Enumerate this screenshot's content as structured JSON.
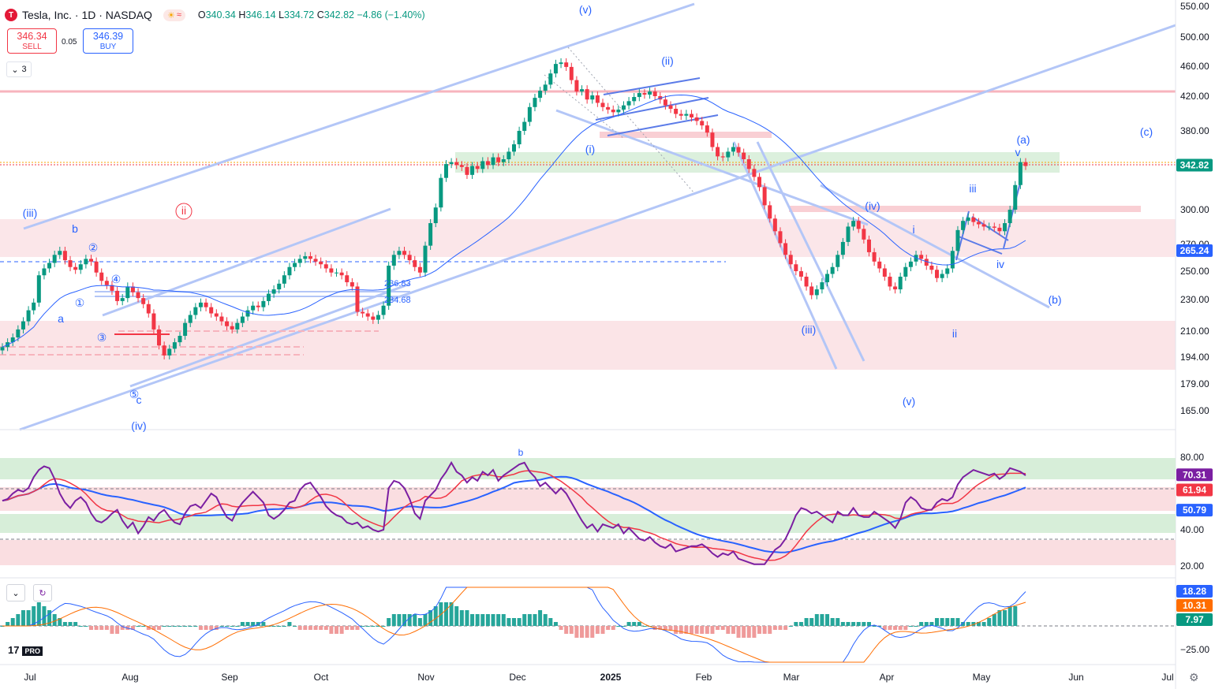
{
  "header": {
    "symbol": "Tesla, Inc. · 1D · NASDAQ",
    "logo_letter": "T",
    "o_label": "O",
    "o": "340.34",
    "h_label": "H",
    "h": "346.14",
    "l_label": "L",
    "l": "334.72",
    "c_label": "C",
    "c": "342.82",
    "change": "−4.86 (−1.40%)"
  },
  "trade": {
    "sell_price": "346.34",
    "sell_label": "SELL",
    "spread": "0.05",
    "buy_price": "346.39",
    "buy_label": "BUY"
  },
  "indicators_toggle": {
    "count": "3"
  },
  "branding": {
    "logo": "17",
    "plan": "PRO"
  },
  "colors": {
    "up": "#089981",
    "down": "#f23645",
    "wave": "#2962ff",
    "rsi": "#7b1fa2",
    "rsi_ma1": "#f23645",
    "rsi_ma2": "#2962ff",
    "macd_line": "#2962ff",
    "signal_line": "#ff6d00"
  },
  "chart_data": [
    {
      "type": "candlestick",
      "title": "Tesla, Inc. · 1D · NASDAQ",
      "yticks": [
        "550.00",
        "500.00",
        "460.00",
        "420.00",
        "380.00",
        "300.00",
        "270.00",
        "250.00",
        "230.00",
        "210.00",
        "194.00",
        "179.00",
        "165.00"
      ],
      "xticks": [
        "Jul",
        "Aug",
        "Sep",
        "Oct",
        "Nov",
        "Dec",
        "2025",
        "Feb",
        "Mar",
        "Apr",
        "May",
        "Jun",
        "Jul"
      ],
      "price_labels": [
        {
          "text": "342.82",
          "color": "#089981"
        },
        {
          "text": "265.24",
          "color": "#2962ff"
        }
      ],
      "level_labels": [
        "236.83",
        "234.68"
      ],
      "wave_labels": [
        "(v)",
        "(ii)",
        "(i)",
        "(iii)",
        "ii",
        "b",
        "②",
        "④",
        "①",
        "a",
        "③",
        "⑤",
        "c",
        "(iv)",
        "(iv)",
        "i",
        "(iii)",
        "ii",
        "(v)",
        "iii",
        "iv",
        "(a)",
        "v",
        "(b)",
        "(c)"
      ],
      "close": [
        200,
        203,
        206,
        211,
        216,
        223,
        228,
        247,
        252,
        256,
        262,
        265,
        258,
        253,
        251,
        255,
        259,
        257,
        249,
        243,
        240,
        236,
        229,
        231,
        239,
        235,
        231,
        227,
        221,
        211,
        201,
        195,
        199,
        203,
        207,
        215,
        220,
        225,
        228,
        225,
        221,
        219,
        216,
        213,
        211,
        215,
        219,
        223,
        226,
        225,
        229,
        234,
        237,
        241,
        247,
        253,
        256,
        259,
        261,
        259,
        257,
        255,
        252,
        249,
        249,
        247,
        242,
        239,
        222,
        221,
        219,
        217,
        220,
        226,
        254,
        262,
        265,
        262,
        258,
        253,
        249,
        269,
        288,
        302,
        330,
        344,
        346,
        343,
        341,
        333,
        342,
        339,
        347,
        343,
        351,
        346,
        349,
        357,
        365,
        380,
        390,
        407,
        418,
        427,
        435,
        450,
        463,
        465,
        459,
        441,
        426,
        429,
        416,
        421,
        412,
        407,
        404,
        401,
        404,
        409,
        414,
        419,
        424,
        422,
        426,
        420,
        416,
        409,
        405,
        399,
        397,
        399,
        395,
        391,
        386,
        378,
        362,
        352,
        351,
        357,
        362,
        356,
        349,
        339,
        331,
        321,
        304,
        292,
        281,
        271,
        262,
        255,
        250,
        246,
        239,
        233,
        237,
        242,
        248,
        253,
        262,
        272,
        285,
        290,
        283,
        274,
        264,
        257,
        252,
        246,
        239,
        237,
        246,
        253,
        257,
        262,
        259,
        254,
        251,
        245,
        248,
        252,
        265,
        282,
        290,
        293,
        289,
        287,
        285,
        285,
        284,
        281,
        288,
        300,
        323,
        346,
        342
      ],
      "rsi": [
        56,
        57,
        60,
        62,
        61,
        63,
        69,
        73,
        75,
        74,
        68,
        60,
        55,
        52,
        56,
        58,
        55,
        49,
        45,
        44,
        46,
        49,
        51,
        45,
        41,
        44,
        38,
        42,
        47,
        45,
        49,
        51,
        47,
        44,
        43,
        49,
        53,
        54,
        52,
        56,
        60,
        58,
        52,
        47,
        45,
        51,
        55,
        58,
        61,
        58,
        55,
        48,
        46,
        48,
        51,
        55,
        56,
        62,
        65,
        66,
        62,
        58,
        53,
        50,
        48,
        47,
        44,
        43,
        44,
        41,
        42,
        40,
        39,
        40,
        63,
        67,
        66,
        63,
        57,
        49,
        46,
        56,
        59,
        62,
        68,
        72,
        77,
        72,
        70,
        66,
        69,
        67,
        72,
        70,
        73,
        67,
        70,
        72,
        74,
        76,
        77,
        72,
        69,
        64,
        66,
        63,
        60,
        63,
        60,
        55,
        50,
        45,
        41,
        43,
        39,
        43,
        42,
        41,
        43,
        38,
        41,
        38,
        35,
        34,
        36,
        33,
        31,
        30,
        32,
        28,
        29,
        30,
        31,
        31,
        32,
        30,
        27,
        25,
        27,
        26,
        28,
        24,
        23,
        22,
        21,
        21,
        21,
        25,
        29,
        31,
        35,
        41,
        48,
        52,
        51,
        49,
        50,
        48,
        46,
        44,
        50,
        48,
        48,
        52,
        48,
        47,
        47,
        50,
        48,
        46,
        44,
        41,
        46,
        55,
        58,
        56,
        52,
        51,
        51,
        55,
        57,
        56,
        58,
        65,
        69,
        71,
        73,
        72,
        71,
        70,
        71,
        68,
        70,
        74,
        73,
        72,
        70
      ],
      "macd_hist": [
        0,
        1,
        2,
        3,
        4,
        4,
        5,
        6,
        5,
        4,
        3,
        2,
        1,
        1,
        1,
        0,
        0,
        -1,
        -1,
        -1,
        -1,
        -2,
        -2,
        -1,
        -1,
        -1,
        0,
        0,
        -1,
        -1,
        -1,
        0,
        0,
        0,
        0,
        0,
        0,
        0,
        -1,
        -1,
        -1,
        -1,
        0,
        0,
        0,
        0,
        1,
        1,
        1,
        1,
        1,
        0,
        0,
        0,
        0,
        1,
        0,
        -1,
        -1,
        -1,
        -1,
        -1,
        -1,
        -2,
        -2,
        -2,
        -1,
        -1,
        -1,
        0,
        0,
        0,
        0,
        0,
        2,
        3,
        3,
        3,
        3,
        3,
        2,
        3,
        4,
        5,
        6,
        6,
        6,
        5,
        4,
        4,
        3,
        3,
        3,
        3,
        3,
        3,
        3,
        2,
        2,
        2,
        3,
        3,
        3,
        4,
        3,
        2,
        1,
        -1,
        -2,
        -2,
        -3,
        -3,
        -3,
        -3,
        -2,
        -2,
        -1,
        -1,
        0,
        0,
        1,
        1,
        1,
        0,
        0,
        -1,
        -1,
        -1,
        -1,
        -2,
        -2,
        -2,
        -2,
        -2,
        -2,
        -2,
        -2,
        -1,
        -1,
        -2,
        -2,
        -3,
        -3,
        -3,
        -3,
        -2,
        -2,
        -2,
        -1,
        -1,
        -1,
        0,
        1,
        1,
        2,
        2,
        3,
        3,
        3,
        2,
        2,
        1,
        1,
        1,
        1,
        1,
        1,
        0,
        0,
        -1,
        -1,
        -1,
        -1,
        -1,
        0,
        0,
        1,
        1,
        1,
        2,
        2,
        2,
        2,
        2,
        1,
        1,
        1,
        1,
        1,
        2,
        3,
        4,
        4,
        5,
        5
      ]
    },
    {
      "type": "line",
      "title": "RSI",
      "yticks": [
        "80.00",
        "40.00",
        "20.00"
      ],
      "last_values": [
        {
          "text": "70.31",
          "color": "#7b1fa2"
        },
        {
          "text": "61.94",
          "color": "#f23645"
        },
        {
          "text": "50.79",
          "color": "#2962ff"
        }
      ],
      "annotation": "b"
    },
    {
      "type": "line",
      "title": "MACD",
      "yticks": [
        "−25.00"
      ],
      "last_values": [
        {
          "text": "18.28",
          "color": "#2962ff"
        },
        {
          "text": "10.31",
          "color": "#ff6d00"
        },
        {
          "text": "7.97",
          "color": "#089981"
        }
      ]
    }
  ]
}
